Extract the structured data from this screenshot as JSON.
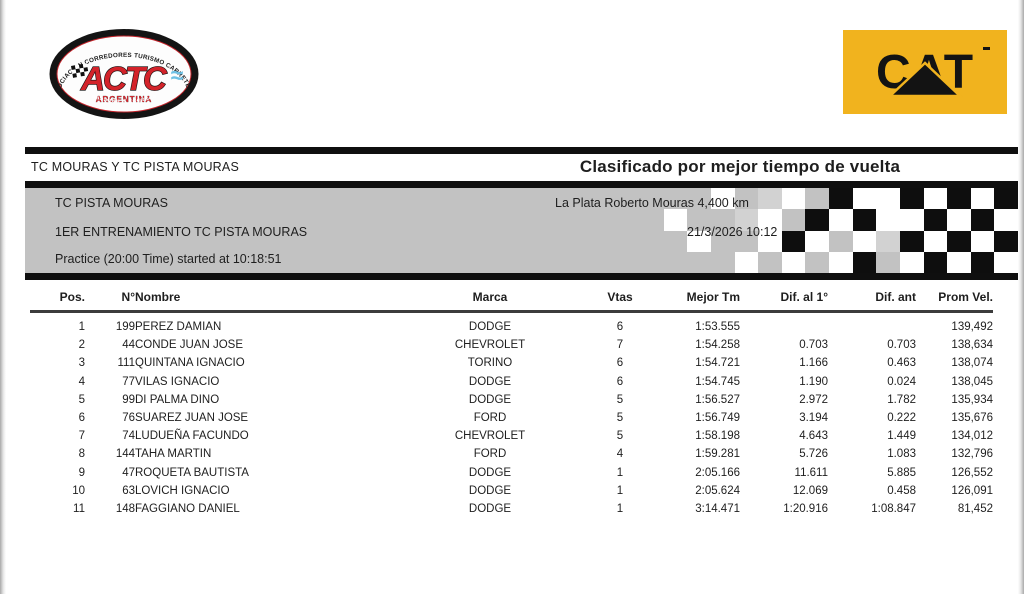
{
  "colors": {
    "bar": "#0f0f0f",
    "band": "#c2c2c2",
    "text": "#1e1e1e",
    "header-rule": "#3c3c3c",
    "cat-yellow": "#f1b31e",
    "actc-red": "#d3232a",
    "flag-blue": "#6ec0e4"
  },
  "icons": {
    "actc_logo": "actc-oval-logo",
    "mini_flag": "checkered-flag-icon",
    "waves": "argentina-wave-icon",
    "cat_logo": "cat-brand-logo",
    "checker_band": "checkered-flag-band"
  },
  "logos": {
    "actc": {
      "arc_text": "ASOCIACION CORREDORES TURISMO CARRETERA",
      "acronym": "ACTC",
      "country": "ARGENTINA",
      "chevrons": "»»»»»»»  ×  «««««««"
    },
    "cat": {
      "text": "CAT"
    }
  },
  "header": {
    "left": "TC MOURAS Y TC PISTA MOURAS",
    "title": "Clasificado por mejor tiempo de vuelta"
  },
  "session": {
    "category": "TC PISTA MOURAS",
    "track": "La Plata Roberto Mouras 4,400 km",
    "session_name": "1ER ENTRENAMIENTO TC PISTA MOURAS",
    "datetime": "21/3/2026 10:12",
    "practice_info": "Practice (20:00 Time) started at 10:18:51"
  },
  "checker": {
    "palette": {
      "g": "#c2c2c2",
      "l": "#d2d2d2",
      "w": "#ffffff",
      "b": "#0e0e0e"
    },
    "rows": [
      "gggwglwgbwwbwbwb",
      "gwgglwgbwbwwbwbw",
      "ggwggwbwgwlbwbwb",
      "ggggwgwgwbgwbwbw"
    ]
  },
  "table": {
    "columns": [
      "Pos.",
      "N°",
      "Nombre",
      "Marca",
      "Vtas",
      "Mejor Tm",
      "Dif. al 1°",
      "Dif. ant",
      "Prom Vel."
    ],
    "rows": [
      {
        "pos": "1",
        "num": "199",
        "name": "PEREZ DAMIAN",
        "marca": "DODGE",
        "vtas": "6",
        "mejor": "1:53.555",
        "dif1": "",
        "difant": "",
        "prom": "139,492"
      },
      {
        "pos": "2",
        "num": "44",
        "name": "CONDE JUAN JOSE",
        "marca": "CHEVROLET",
        "vtas": "7",
        "mejor": "1:54.258",
        "dif1": "0.703",
        "difant": "0.703",
        "prom": "138,634"
      },
      {
        "pos": "3",
        "num": "111",
        "name": "QUINTANA IGNACIO",
        "marca": "TORINO",
        "vtas": "6",
        "mejor": "1:54.721",
        "dif1": "1.166",
        "difant": "0.463",
        "prom": "138,074"
      },
      {
        "pos": "4",
        "num": "77",
        "name": "VILAS IGNACIO",
        "marca": "DODGE",
        "vtas": "6",
        "mejor": "1:54.745",
        "dif1": "1.190",
        "difant": "0.024",
        "prom": "138,045"
      },
      {
        "pos": "5",
        "num": "99",
        "name": "DI PALMA DINO",
        "marca": "DODGE",
        "vtas": "5",
        "mejor": "1:56.527",
        "dif1": "2.972",
        "difant": "1.782",
        "prom": "135,934"
      },
      {
        "pos": "6",
        "num": "76",
        "name": "SUAREZ JUAN JOSE",
        "marca": "FORD",
        "vtas": "5",
        "mejor": "1:56.749",
        "dif1": "3.194",
        "difant": "0.222",
        "prom": "135,676"
      },
      {
        "pos": "7",
        "num": "74",
        "name": "LUDUEÑA FACUNDO",
        "marca": "CHEVROLET",
        "vtas": "5",
        "mejor": "1:58.198",
        "dif1": "4.643",
        "difant": "1.449",
        "prom": "134,012"
      },
      {
        "pos": "8",
        "num": "144",
        "name": "TAHA MARTIN",
        "marca": "FORD",
        "vtas": "4",
        "mejor": "1:59.281",
        "dif1": "5.726",
        "difant": "1.083",
        "prom": "132,796"
      },
      {
        "pos": "9",
        "num": "47",
        "name": "ROQUETA BAUTISTA",
        "marca": "DODGE",
        "vtas": "1",
        "mejor": "2:05.166",
        "dif1": "11.611",
        "difant": "5.885",
        "prom": "126,552"
      },
      {
        "pos": "10",
        "num": "63",
        "name": "LOVICH IGNACIO",
        "marca": "DODGE",
        "vtas": "1",
        "mejor": "2:05.624",
        "dif1": "12.069",
        "difant": "0.458",
        "prom": "126,091"
      },
      {
        "pos": "11",
        "num": "148",
        "name": "FAGGIANO DANIEL",
        "marca": "DODGE",
        "vtas": "1",
        "mejor": "3:14.471",
        "dif1": "1:20.916",
        "difant": "1:08.847",
        "prom": "81,452"
      }
    ]
  }
}
